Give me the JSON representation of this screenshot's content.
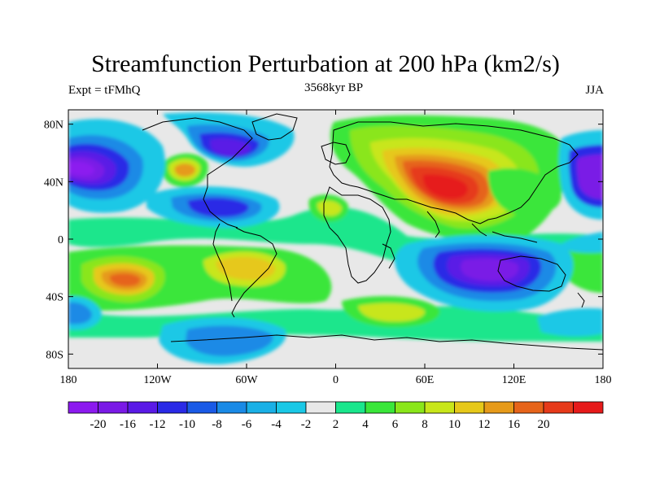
{
  "title": "Streamfunction Perturbation at 200 hPa (km2/s)",
  "subtitle_left": "Expt = tFMhQ",
  "subtitle_center": "3568kyr BP",
  "subtitle_right": "JJA",
  "lat_ticks": [
    {
      "value": 80,
      "label": "80N"
    },
    {
      "value": 40,
      "label": "40N"
    },
    {
      "value": 0,
      "label": "0"
    },
    {
      "value": -40,
      "label": "40S"
    },
    {
      "value": -80,
      "label": "80S"
    }
  ],
  "lon_ticks": [
    {
      "value": -180,
      "label": "180"
    },
    {
      "value": -120,
      "label": "120W"
    },
    {
      "value": -60,
      "label": "60W"
    },
    {
      "value": 0,
      "label": "0"
    },
    {
      "value": 60,
      "label": "60E"
    },
    {
      "value": 120,
      "label": "120E"
    },
    {
      "value": 180,
      "label": "180"
    }
  ],
  "colorbar": {
    "colors": [
      "#8c1aef",
      "#7a1ae6",
      "#5a1ae6",
      "#2a2ae6",
      "#1a5ae6",
      "#1a8ae6",
      "#1ab0e6",
      "#1ac8e6",
      "#e8e8e8",
      "#1ae68c",
      "#3ae63a",
      "#8ae61a",
      "#c8e61a",
      "#e6c81a",
      "#e69a1a",
      "#e6641a",
      "#e63a1a",
      "#e61a1a"
    ],
    "labels": [
      "-20",
      "-16",
      "-12",
      "-10",
      "-8",
      "-6",
      "-4",
      "-2",
      "2",
      "4",
      "6",
      "8",
      "10",
      "12",
      "16",
      "20"
    ]
  }
}
